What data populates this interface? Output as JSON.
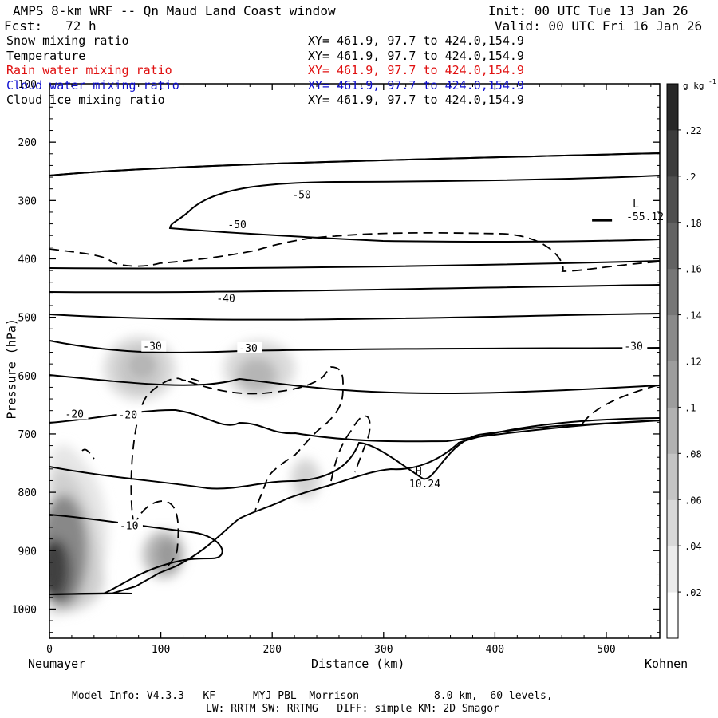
{
  "header": {
    "title": "AMPS 8-km WRF -- Qn Maud Land Coast window",
    "init": "Init: 00 UTC Tue 13 Jan 26",
    "fcst": "Fcst:   72 h",
    "valid": "Valid: 00 UTC Fri 16 Jan 26"
  },
  "fields": [
    {
      "name": "Snow mixing ratio",
      "xy": "XY= 461.9, 97.7 to 424.0,154.9",
      "color": "#000000"
    },
    {
      "name": "Temperature",
      "xy": "XY= 461.9, 97.7 to 424.0,154.9",
      "color": "#000000"
    },
    {
      "name": "Rain water mixing ratio",
      "xy": "XY= 461.9, 97.7 to 424.0,154.9",
      "color": "#e01010"
    },
    {
      "name": "Cloud water mixing ratio",
      "xy": "XY= 461.9, 97.7 to 424.0,154.9",
      "color": "#1010d0"
    },
    {
      "name": "Cloud ice mixing ratio",
      "xy": "XY= 461.9, 97.7 to 424.0,154.9",
      "color": "#000000"
    }
  ],
  "footer": {
    "model": "Model Info: V4.3.3   KF      MYJ PBL  Morrison            8.0 km,  60 levels,",
    "physics": "LW: RRTM SW: RRTMG   DIFF: simple KM: 2D Smagor"
  },
  "chart_data": {
    "type": "cross-section",
    "ylabel": "Pressure (hPa)",
    "xlabel": "Distance (km)",
    "x_left_label": "Neumayer",
    "x_right_label": "Kohnen",
    "xlim": [
      0,
      548
    ],
    "ylim": [
      1050,
      100
    ],
    "x_ticks": [
      0,
      100,
      200,
      300,
      400,
      500
    ],
    "y_ticks": [
      100,
      200,
      300,
      400,
      500,
      600,
      700,
      800,
      900,
      1000
    ],
    "colorbar": {
      "unit": "g kg",
      "unit_exp": "-1",
      "ticks": [
        ".02",
        ".04",
        ".06",
        ".08",
        ".1",
        ".12",
        ".14",
        ".16",
        ".18",
        ".2",
        ".22"
      ],
      "range": [
        0,
        0.24
      ]
    },
    "temperature_labels": [
      {
        "text": "-50",
        "x": 218,
        "p": 292
      },
      {
        "text": "-50",
        "x": 160,
        "p": 343
      },
      {
        "text": "-40",
        "x": 150,
        "p": 470
      },
      {
        "text": "-30",
        "x": 84,
        "p": 552
      },
      {
        "text": "-30",
        "x": 170,
        "p": 555
      },
      {
        "text": "-30",
        "x": 516,
        "p": 552
      },
      {
        "text": "-20",
        "x": 14,
        "p": 668
      },
      {
        "text": "-20",
        "x": 62,
        "p": 669
      },
      {
        "text": "-10",
        "x": 63,
        "p": 859
      }
    ],
    "extrema": [
      {
        "type": "L",
        "value": "-55.12",
        "x": 518,
        "p": 312
      },
      {
        "type": "H",
        "value": "10.24",
        "x": 323,
        "p": 770
      }
    ],
    "shading_max": [
      {
        "x": 12,
        "p": 920,
        "value": 0.24
      },
      {
        "x": 85,
        "p": 580,
        "value": 0.09
      },
      {
        "x": 185,
        "p": 600,
        "value": 0.14
      },
      {
        "x": 110,
        "p": 910,
        "value": 0.12
      },
      {
        "x": 227,
        "p": 800,
        "value": 0.05
      }
    ]
  }
}
